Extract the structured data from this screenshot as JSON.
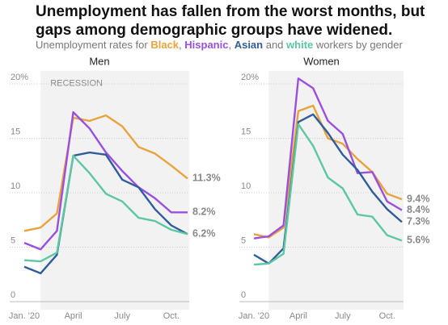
{
  "title": [
    "Unemployment has fallen from the worst months, but",
    "gaps among demographic groups have widened."
  ],
  "subtitle": [
    {
      "text": "Unemployment rates for "
    },
    {
      "text": "Black",
      "color": "#e8a33d"
    },
    {
      "text": ", "
    },
    {
      "text": "Hispanic",
      "color": "#9b4fe0"
    },
    {
      "text": ", "
    },
    {
      "text": "Asian",
      "color": "#2f5d9a"
    },
    {
      "text": " and "
    },
    {
      "text": "white",
      "color": "#5cc7a0"
    },
    {
      "text": " workers by gender"
    }
  ],
  "chart_data": [
    {
      "type": "line",
      "title": "Men",
      "categories": [
        "Jan. '20",
        null,
        null,
        "April",
        null,
        null,
        "July",
        null,
        null,
        "Oct.",
        null
      ],
      "ylim": [
        0,
        21.2
      ],
      "yticks": [
        0,
        5,
        10,
        15,
        {
          "value": 20,
          "label": "20%"
        }
      ],
      "grid": true,
      "shade": {
        "from": 1,
        "text": "RECESSION"
      },
      "series": [
        {
          "name": "Black",
          "color": "#e8a33d",
          "values": [
            6.5,
            6.8,
            8.1,
            16.9,
            16.6,
            17.1,
            16.1,
            14.2,
            13.6,
            12.5,
            11.3
          ],
          "value_labels": [
            null,
            null,
            null,
            null,
            null,
            null,
            null,
            null,
            null,
            null,
            "11.3%"
          ]
        },
        {
          "name": "Hispanic",
          "color": "#9b4fe0",
          "values": [
            5.4,
            4.8,
            6.5,
            17.4,
            15.9,
            13.7,
            12.0,
            10.5,
            9.5,
            8.2,
            8.2
          ],
          "value_labels": [
            null,
            null,
            null,
            null,
            null,
            null,
            null,
            null,
            null,
            null,
            "8.2%"
          ]
        },
        {
          "name": "Asian",
          "color": "#2f5d9a",
          "values": [
            3.2,
            2.6,
            4.3,
            13.4,
            13.7,
            13.5,
            11.2,
            10.5,
            8.5,
            7.0,
            6.2
          ],
          "value_labels": [
            null,
            null,
            null,
            null,
            null,
            null,
            null,
            null,
            null,
            null,
            "6.2%"
          ]
        },
        {
          "name": "white",
          "color": "#5cc7a0",
          "values": [
            3.8,
            3.7,
            4.5,
            13.4,
            11.8,
            9.9,
            9.2,
            7.7,
            7.4,
            6.6,
            6.2
          ]
        }
      ]
    },
    {
      "type": "line",
      "title": "Women",
      "categories": [
        "Jan. '20",
        null,
        null,
        "April",
        null,
        null,
        "July",
        null,
        null,
        "Oct.",
        null
      ],
      "ylim": [
        0,
        21.2
      ],
      "yticks": [
        0,
        5,
        10,
        15,
        {
          "value": 20,
          "label": "20%"
        }
      ],
      "grid": true,
      "shade": {
        "from": 1
      },
      "series": [
        {
          "name": "Black",
          "color": "#e8a33d",
          "values": [
            6.2,
            5.9,
            6.8,
            17.5,
            18.0,
            15.0,
            14.5,
            13.1,
            11.9,
            9.9,
            9.4
          ],
          "value_labels": [
            null,
            null,
            null,
            null,
            null,
            null,
            null,
            null,
            null,
            null,
            "9.4%"
          ]
        },
        {
          "name": "Hispanic",
          "color": "#9b4fe0",
          "values": [
            5.8,
            6.0,
            7.0,
            20.5,
            19.6,
            16.6,
            15.4,
            11.8,
            11.9,
            9.2,
            8.4
          ],
          "value_labels": [
            null,
            null,
            null,
            null,
            null,
            null,
            null,
            null,
            null,
            null,
            "8.4%"
          ]
        },
        {
          "name": "Asian",
          "color": "#2f5d9a",
          "values": [
            4.3,
            3.5,
            4.9,
            16.5,
            17.2,
            15.5,
            13.5,
            12.1,
            10.1,
            8.5,
            7.3
          ],
          "value_labels": [
            null,
            null,
            null,
            null,
            null,
            null,
            null,
            null,
            null,
            null,
            "7.3%"
          ]
        },
        {
          "name": "white",
          "color": "#5cc7a0",
          "values": [
            3.4,
            3.5,
            4.4,
            16.3,
            14.3,
            11.4,
            10.4,
            8.0,
            7.8,
            6.1,
            5.6
          ],
          "value_labels": [
            null,
            null,
            null,
            null,
            null,
            null,
            null,
            null,
            null,
            null,
            "5.6%"
          ]
        }
      ]
    }
  ]
}
